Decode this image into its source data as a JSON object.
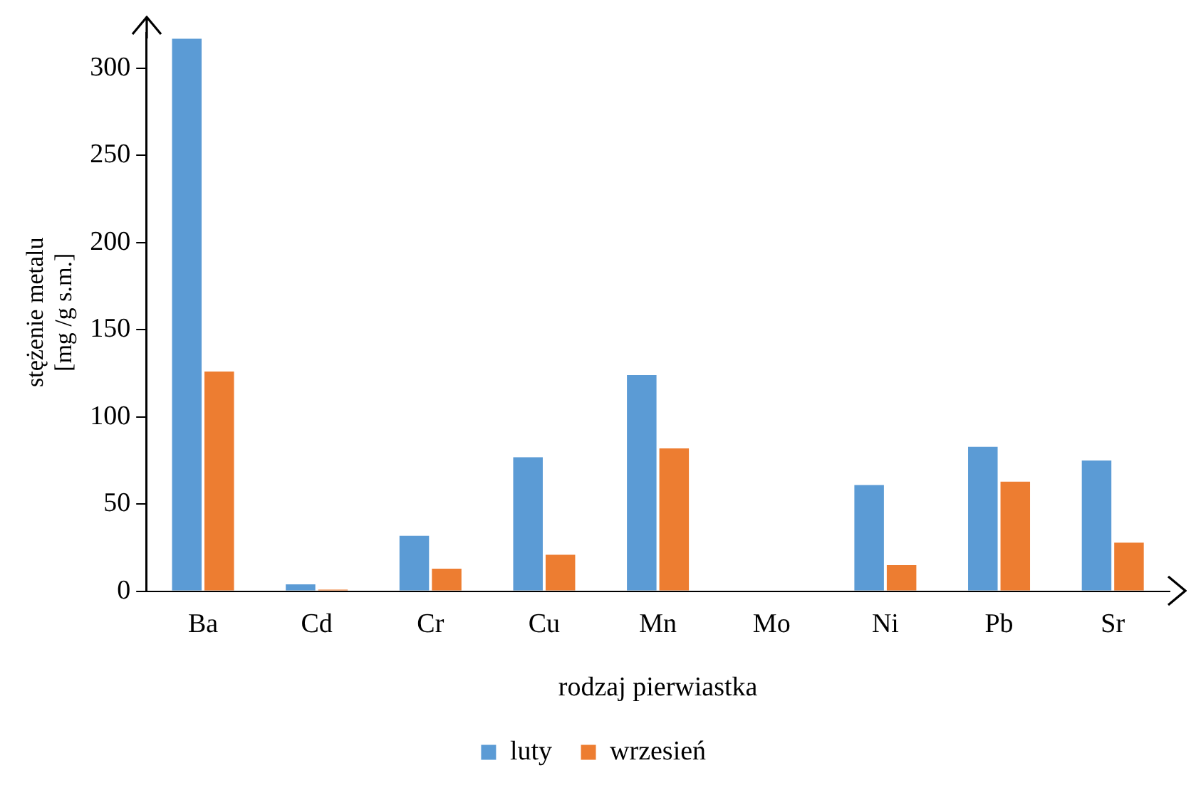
{
  "chart_data": {
    "type": "bar",
    "xlabel": "rodzaj pierwiastka",
    "ylabel": "stężenie metalu\n[mg /g s.m.]",
    "categories": [
      "Ba",
      "Cd",
      "Cr",
      "Cu",
      "Mn",
      "Mo",
      "Ni",
      "Pb",
      "Sr"
    ],
    "series": [
      {
        "name": "luty",
        "color": "#5b9bd5",
        "values": [
          317,
          4,
          32,
          77,
          124,
          0,
          61,
          83,
          75
        ]
      },
      {
        "name": "wrzesień",
        "color": "#ed7d31",
        "values": [
          126,
          1,
          13,
          21,
          82,
          0,
          15,
          63,
          28
        ]
      }
    ],
    "ylim": [
      0,
      320
    ],
    "yticks": [
      0,
      50,
      100,
      150,
      200,
      250,
      300
    ],
    "grid": false,
    "legend": "bottom"
  }
}
